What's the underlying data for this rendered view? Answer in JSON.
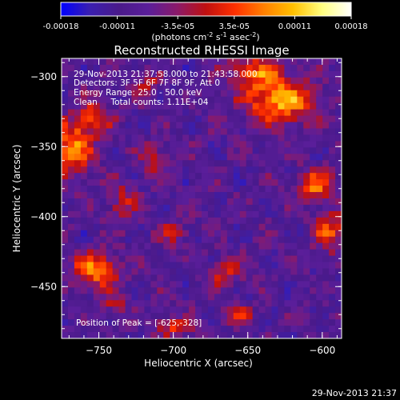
{
  "chart_data": {
    "type": "heatmap",
    "title": "Reconstructed RHESSI Image",
    "xlabel": "Heliocentric X (arcsec)",
    "ylabel": "Heliocentric Y (arcsec)",
    "xlim": [
      -775,
      -587
    ],
    "ylim": [
      -487,
      -287
    ],
    "x_ticks": [
      -750,
      -700,
      -650,
      -600
    ],
    "y_ticks": [
      -300,
      -350,
      -400,
      -450
    ],
    "colorbar": {
      "range": [
        -0.00018,
        0.00018
      ],
      "tick_values": [
        -0.00018,
        -0.00011,
        -3.5e-05,
        3.5e-05,
        0.00011,
        0.00018
      ],
      "tick_labels": [
        "-0.00018",
        "-0.00011",
        "-3.5e-05",
        "3.5e-05",
        "0.00011",
        "0.00018"
      ],
      "units_prefix": "(photons cm",
      "units_exp1": "-2",
      "units_mid": " s",
      "units_exp2": "-1",
      "units_mid2": " asec",
      "units_exp3": "-2",
      "units_suffix": ")",
      "colors": [
        "#0000ff",
        "#3a1fb0",
        "#4a1a8a",
        "#5a1e9a",
        "#8a1a6a",
        "#c01010",
        "#ff3000",
        "#ff8000",
        "#ffc000",
        "#ffff80",
        "#ffffff"
      ]
    },
    "sources": [
      {
        "x": -628,
        "y": -318,
        "peak": 0.00018,
        "sx": 16,
        "sy": 11
      },
      {
        "x": -645,
        "y": -297,
        "peak": 0.00013,
        "sx": 14,
        "sy": 8
      },
      {
        "x": -752,
        "y": -438,
        "peak": 0.00017,
        "sx": 10,
        "sy": 9
      },
      {
        "x": -768,
        "y": -352,
        "peak": 0.00016,
        "sx": 9,
        "sy": 14
      },
      {
        "x": -753,
        "y": -330,
        "peak": 0.00012,
        "sx": 8,
        "sy": 9
      },
      {
        "x": -605,
        "y": -377,
        "peak": 0.00014,
        "sx": 9,
        "sy": 8
      },
      {
        "x": -595,
        "y": -410,
        "peak": 0.00013,
        "sx": 7,
        "sy": 10
      },
      {
        "x": -700,
        "y": -478,
        "peak": 0.00012,
        "sx": 8,
        "sy": 5
      },
      {
        "x": -712,
        "y": -360,
        "peak": 9e-05,
        "sx": 7,
        "sy": 8
      },
      {
        "x": -735,
        "y": -390,
        "peak": 9e-05,
        "sx": 7,
        "sy": 10
      },
      {
        "x": -665,
        "y": -440,
        "peak": 0.0001,
        "sx": 8,
        "sy": 7
      },
      {
        "x": -658,
        "y": -470,
        "peak": 8e-05,
        "sx": 9,
        "sy": 5
      },
      {
        "x": -700,
        "y": -412,
        "peak": 8e-05,
        "sx": 7,
        "sy": 6
      },
      {
        "x": -718,
        "y": -305,
        "peak": 8e-05,
        "sx": 7,
        "sy": 6
      },
      {
        "x": -740,
        "y": -463,
        "peak": 8e-05,
        "sx": 6,
        "sy": 5
      }
    ],
    "annotations": {
      "time_range": "29-Nov-2013 21:37:58.000 to 21:43:58.000",
      "detectors": "Detectors: 3F 5F 6F 7F 8F 9F, Att 0",
      "energy": "Energy Range: 25.0 - 50.0 keV",
      "clean": "Clean     Total counts: 1.11E+04",
      "peak": "Position of Peak = [-625,-328]"
    }
  },
  "footer_date": "29-Nov-2013 21:37"
}
